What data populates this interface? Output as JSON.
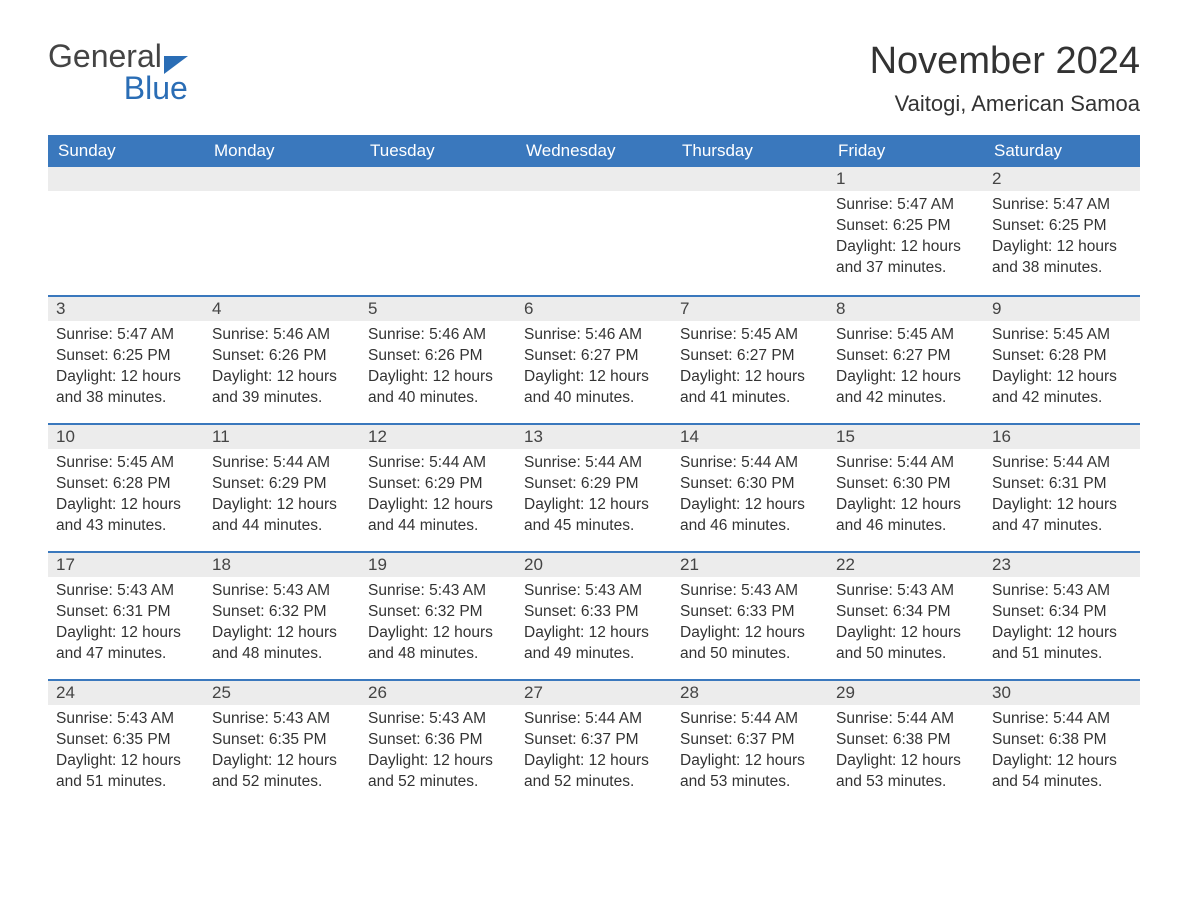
{
  "logo": {
    "text1": "General",
    "text2": "Blue"
  },
  "title": "November 2024",
  "location": "Vaitogi, American Samoa",
  "colors": {
    "header_bg": "#3a78bd",
    "header_text": "#ffffff",
    "daynum_bg": "#ececec",
    "row_border": "#3a78bd",
    "body_text": "#333333",
    "logo_blue": "#2a6db5",
    "logo_gray": "#444444",
    "page_bg": "#ffffff"
  },
  "day_headers": [
    "Sunday",
    "Monday",
    "Tuesday",
    "Wednesday",
    "Thursday",
    "Friday",
    "Saturday"
  ],
  "weeks": [
    [
      null,
      null,
      null,
      null,
      null,
      {
        "n": "1",
        "sunrise": "5:47 AM",
        "sunset": "6:25 PM",
        "daylight": "12 hours and 37 minutes."
      },
      {
        "n": "2",
        "sunrise": "5:47 AM",
        "sunset": "6:25 PM",
        "daylight": "12 hours and 38 minutes."
      }
    ],
    [
      {
        "n": "3",
        "sunrise": "5:47 AM",
        "sunset": "6:25 PM",
        "daylight": "12 hours and 38 minutes."
      },
      {
        "n": "4",
        "sunrise": "5:46 AM",
        "sunset": "6:26 PM",
        "daylight": "12 hours and 39 minutes."
      },
      {
        "n": "5",
        "sunrise": "5:46 AM",
        "sunset": "6:26 PM",
        "daylight": "12 hours and 40 minutes."
      },
      {
        "n": "6",
        "sunrise": "5:46 AM",
        "sunset": "6:27 PM",
        "daylight": "12 hours and 40 minutes."
      },
      {
        "n": "7",
        "sunrise": "5:45 AM",
        "sunset": "6:27 PM",
        "daylight": "12 hours and 41 minutes."
      },
      {
        "n": "8",
        "sunrise": "5:45 AM",
        "sunset": "6:27 PM",
        "daylight": "12 hours and 42 minutes."
      },
      {
        "n": "9",
        "sunrise": "5:45 AM",
        "sunset": "6:28 PM",
        "daylight": "12 hours and 42 minutes."
      }
    ],
    [
      {
        "n": "10",
        "sunrise": "5:45 AM",
        "sunset": "6:28 PM",
        "daylight": "12 hours and 43 minutes."
      },
      {
        "n": "11",
        "sunrise": "5:44 AM",
        "sunset": "6:29 PM",
        "daylight": "12 hours and 44 minutes."
      },
      {
        "n": "12",
        "sunrise": "5:44 AM",
        "sunset": "6:29 PM",
        "daylight": "12 hours and 44 minutes."
      },
      {
        "n": "13",
        "sunrise": "5:44 AM",
        "sunset": "6:29 PM",
        "daylight": "12 hours and 45 minutes."
      },
      {
        "n": "14",
        "sunrise": "5:44 AM",
        "sunset": "6:30 PM",
        "daylight": "12 hours and 46 minutes."
      },
      {
        "n": "15",
        "sunrise": "5:44 AM",
        "sunset": "6:30 PM",
        "daylight": "12 hours and 46 minutes."
      },
      {
        "n": "16",
        "sunrise": "5:44 AM",
        "sunset": "6:31 PM",
        "daylight": "12 hours and 47 minutes."
      }
    ],
    [
      {
        "n": "17",
        "sunrise": "5:43 AM",
        "sunset": "6:31 PM",
        "daylight": "12 hours and 47 minutes."
      },
      {
        "n": "18",
        "sunrise": "5:43 AM",
        "sunset": "6:32 PM",
        "daylight": "12 hours and 48 minutes."
      },
      {
        "n": "19",
        "sunrise": "5:43 AM",
        "sunset": "6:32 PM",
        "daylight": "12 hours and 48 minutes."
      },
      {
        "n": "20",
        "sunrise": "5:43 AM",
        "sunset": "6:33 PM",
        "daylight": "12 hours and 49 minutes."
      },
      {
        "n": "21",
        "sunrise": "5:43 AM",
        "sunset": "6:33 PM",
        "daylight": "12 hours and 50 minutes."
      },
      {
        "n": "22",
        "sunrise": "5:43 AM",
        "sunset": "6:34 PM",
        "daylight": "12 hours and 50 minutes."
      },
      {
        "n": "23",
        "sunrise": "5:43 AM",
        "sunset": "6:34 PM",
        "daylight": "12 hours and 51 minutes."
      }
    ],
    [
      {
        "n": "24",
        "sunrise": "5:43 AM",
        "sunset": "6:35 PM",
        "daylight": "12 hours and 51 minutes."
      },
      {
        "n": "25",
        "sunrise": "5:43 AM",
        "sunset": "6:35 PM",
        "daylight": "12 hours and 52 minutes."
      },
      {
        "n": "26",
        "sunrise": "5:43 AM",
        "sunset": "6:36 PM",
        "daylight": "12 hours and 52 minutes."
      },
      {
        "n": "27",
        "sunrise": "5:44 AM",
        "sunset": "6:37 PM",
        "daylight": "12 hours and 52 minutes."
      },
      {
        "n": "28",
        "sunrise": "5:44 AM",
        "sunset": "6:37 PM",
        "daylight": "12 hours and 53 minutes."
      },
      {
        "n": "29",
        "sunrise": "5:44 AM",
        "sunset": "6:38 PM",
        "daylight": "12 hours and 53 minutes."
      },
      {
        "n": "30",
        "sunrise": "5:44 AM",
        "sunset": "6:38 PM",
        "daylight": "12 hours and 54 minutes."
      }
    ]
  ],
  "labels": {
    "sunrise": "Sunrise: ",
    "sunset": "Sunset: ",
    "daylight": "Daylight: "
  }
}
